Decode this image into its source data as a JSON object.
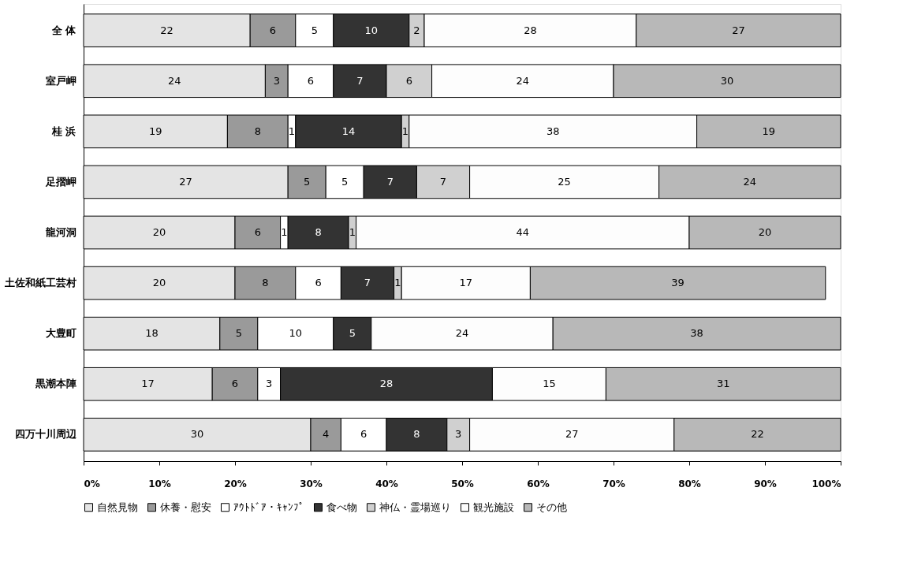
{
  "chart_data": {
    "type": "bar",
    "orientation": "horizontal",
    "stacked": true,
    "legend": "bottom",
    "categories": [
      "全 体",
      "室戸岬",
      "桂 浜",
      "足摺岬",
      "龍河洞",
      "土佐和紙工芸村",
      "大豊町",
      "黒潮本陣",
      "四万十川周辺"
    ],
    "xlim": [
      0,
      100
    ],
    "xticks": [
      {
        "value": 0,
        "label": "0%"
      },
      {
        "value": 10,
        "label": "10%"
      },
      {
        "value": 20,
        "label": "20%"
      },
      {
        "value": 30,
        "label": "30%"
      },
      {
        "value": 40,
        "label": "40%"
      },
      {
        "value": 50,
        "label": "50%"
      },
      {
        "value": 60,
        "label": "60%"
      },
      {
        "value": 70,
        "label": "70%"
      },
      {
        "value": 80,
        "label": "80%"
      },
      {
        "value": 90,
        "label": "90%"
      },
      {
        "value": 100,
        "label": "100%"
      }
    ],
    "series": [
      {
        "name": "自然見物",
        "color": "#e4e4e4",
        "values": [
          22,
          24,
          19,
          27,
          20,
          20,
          18,
          17,
          30
        ],
        "value_labels": [
          "22",
          "24",
          "19",
          "27",
          "20",
          "20",
          "18",
          "17",
          "30"
        ]
      },
      {
        "name": "休養・慰安",
        "color": "#9a9a9a",
        "values": [
          6,
          3,
          8,
          5,
          6,
          8,
          5,
          6,
          4
        ],
        "value_labels": [
          "6",
          "3",
          "8",
          "5",
          "6",
          "8",
          "5",
          "6",
          "4"
        ]
      },
      {
        "name": "ｱｳﾄﾄﾞｱ・ｷｬﾝﾌﾟ",
        "color": "#ffffff",
        "values": [
          5,
          6,
          1,
          5,
          1,
          6,
          10,
          3,
          6
        ],
        "value_labels": [
          "5",
          "6",
          "1",
          "5",
          "1",
          "6",
          "10",
          "3",
          "6"
        ]
      },
      {
        "name": "食べ物",
        "color": "#333333",
        "values": [
          10,
          7,
          14,
          7,
          8,
          7,
          5,
          28,
          8
        ],
        "value_labels": [
          "10",
          "7",
          "14",
          "7",
          "8",
          "7",
          "5",
          "28",
          "8"
        ]
      },
      {
        "name": "神仏・霊場巡り",
        "color": "#d0d0d0",
        "values": [
          2,
          6,
          1,
          7,
          1,
          1,
          null,
          null,
          3
        ],
        "value_labels": [
          "2",
          "6",
          "1",
          "7",
          "1",
          "1",
          null,
          null,
          "3"
        ]
      },
      {
        "name": "観光施設",
        "color": "#fdfdfd",
        "values": [
          28,
          24,
          38,
          25,
          44,
          17,
          24,
          15,
          27
        ],
        "value_labels": [
          "28",
          "24",
          "38",
          "25",
          "44",
          "17",
          "24",
          "15",
          "27"
        ]
      },
      {
        "name": "その他",
        "color": "#b8b8b8",
        "values": [
          27,
          30,
          19,
          24,
          20,
          39,
          38,
          31,
          22
        ],
        "value_labels": [
          "27",
          "30",
          "19",
          "24",
          "20",
          "39",
          "38",
          "31",
          "22"
        ]
      }
    ]
  }
}
